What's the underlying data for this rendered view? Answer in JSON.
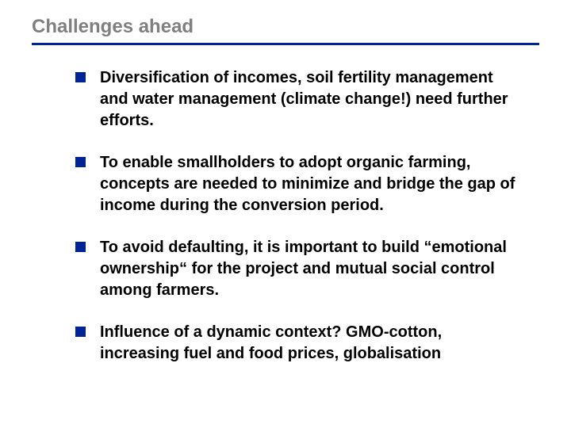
{
  "title": {
    "text": "Challenges ahead",
    "color": "#7f7f7f",
    "fontsize": 24
  },
  "rule_color": "#002395",
  "bullet": {
    "square_color": "#002395",
    "text_color": "#000000",
    "fontsize": 20
  },
  "items": [
    "Diversification of incomes, soil fertility management and water management (climate change!) need further efforts.",
    "To enable smallholders to adopt organic farming, concepts are needed to minimize and bridge the gap of income during the conversion period.",
    "To avoid defaulting, it is important to build “emotional ownership“ for the project and mutual social control among farmers.",
    "Influence of a dynamic context? GMO-cotton, increasing fuel and food prices, globalisation"
  ]
}
